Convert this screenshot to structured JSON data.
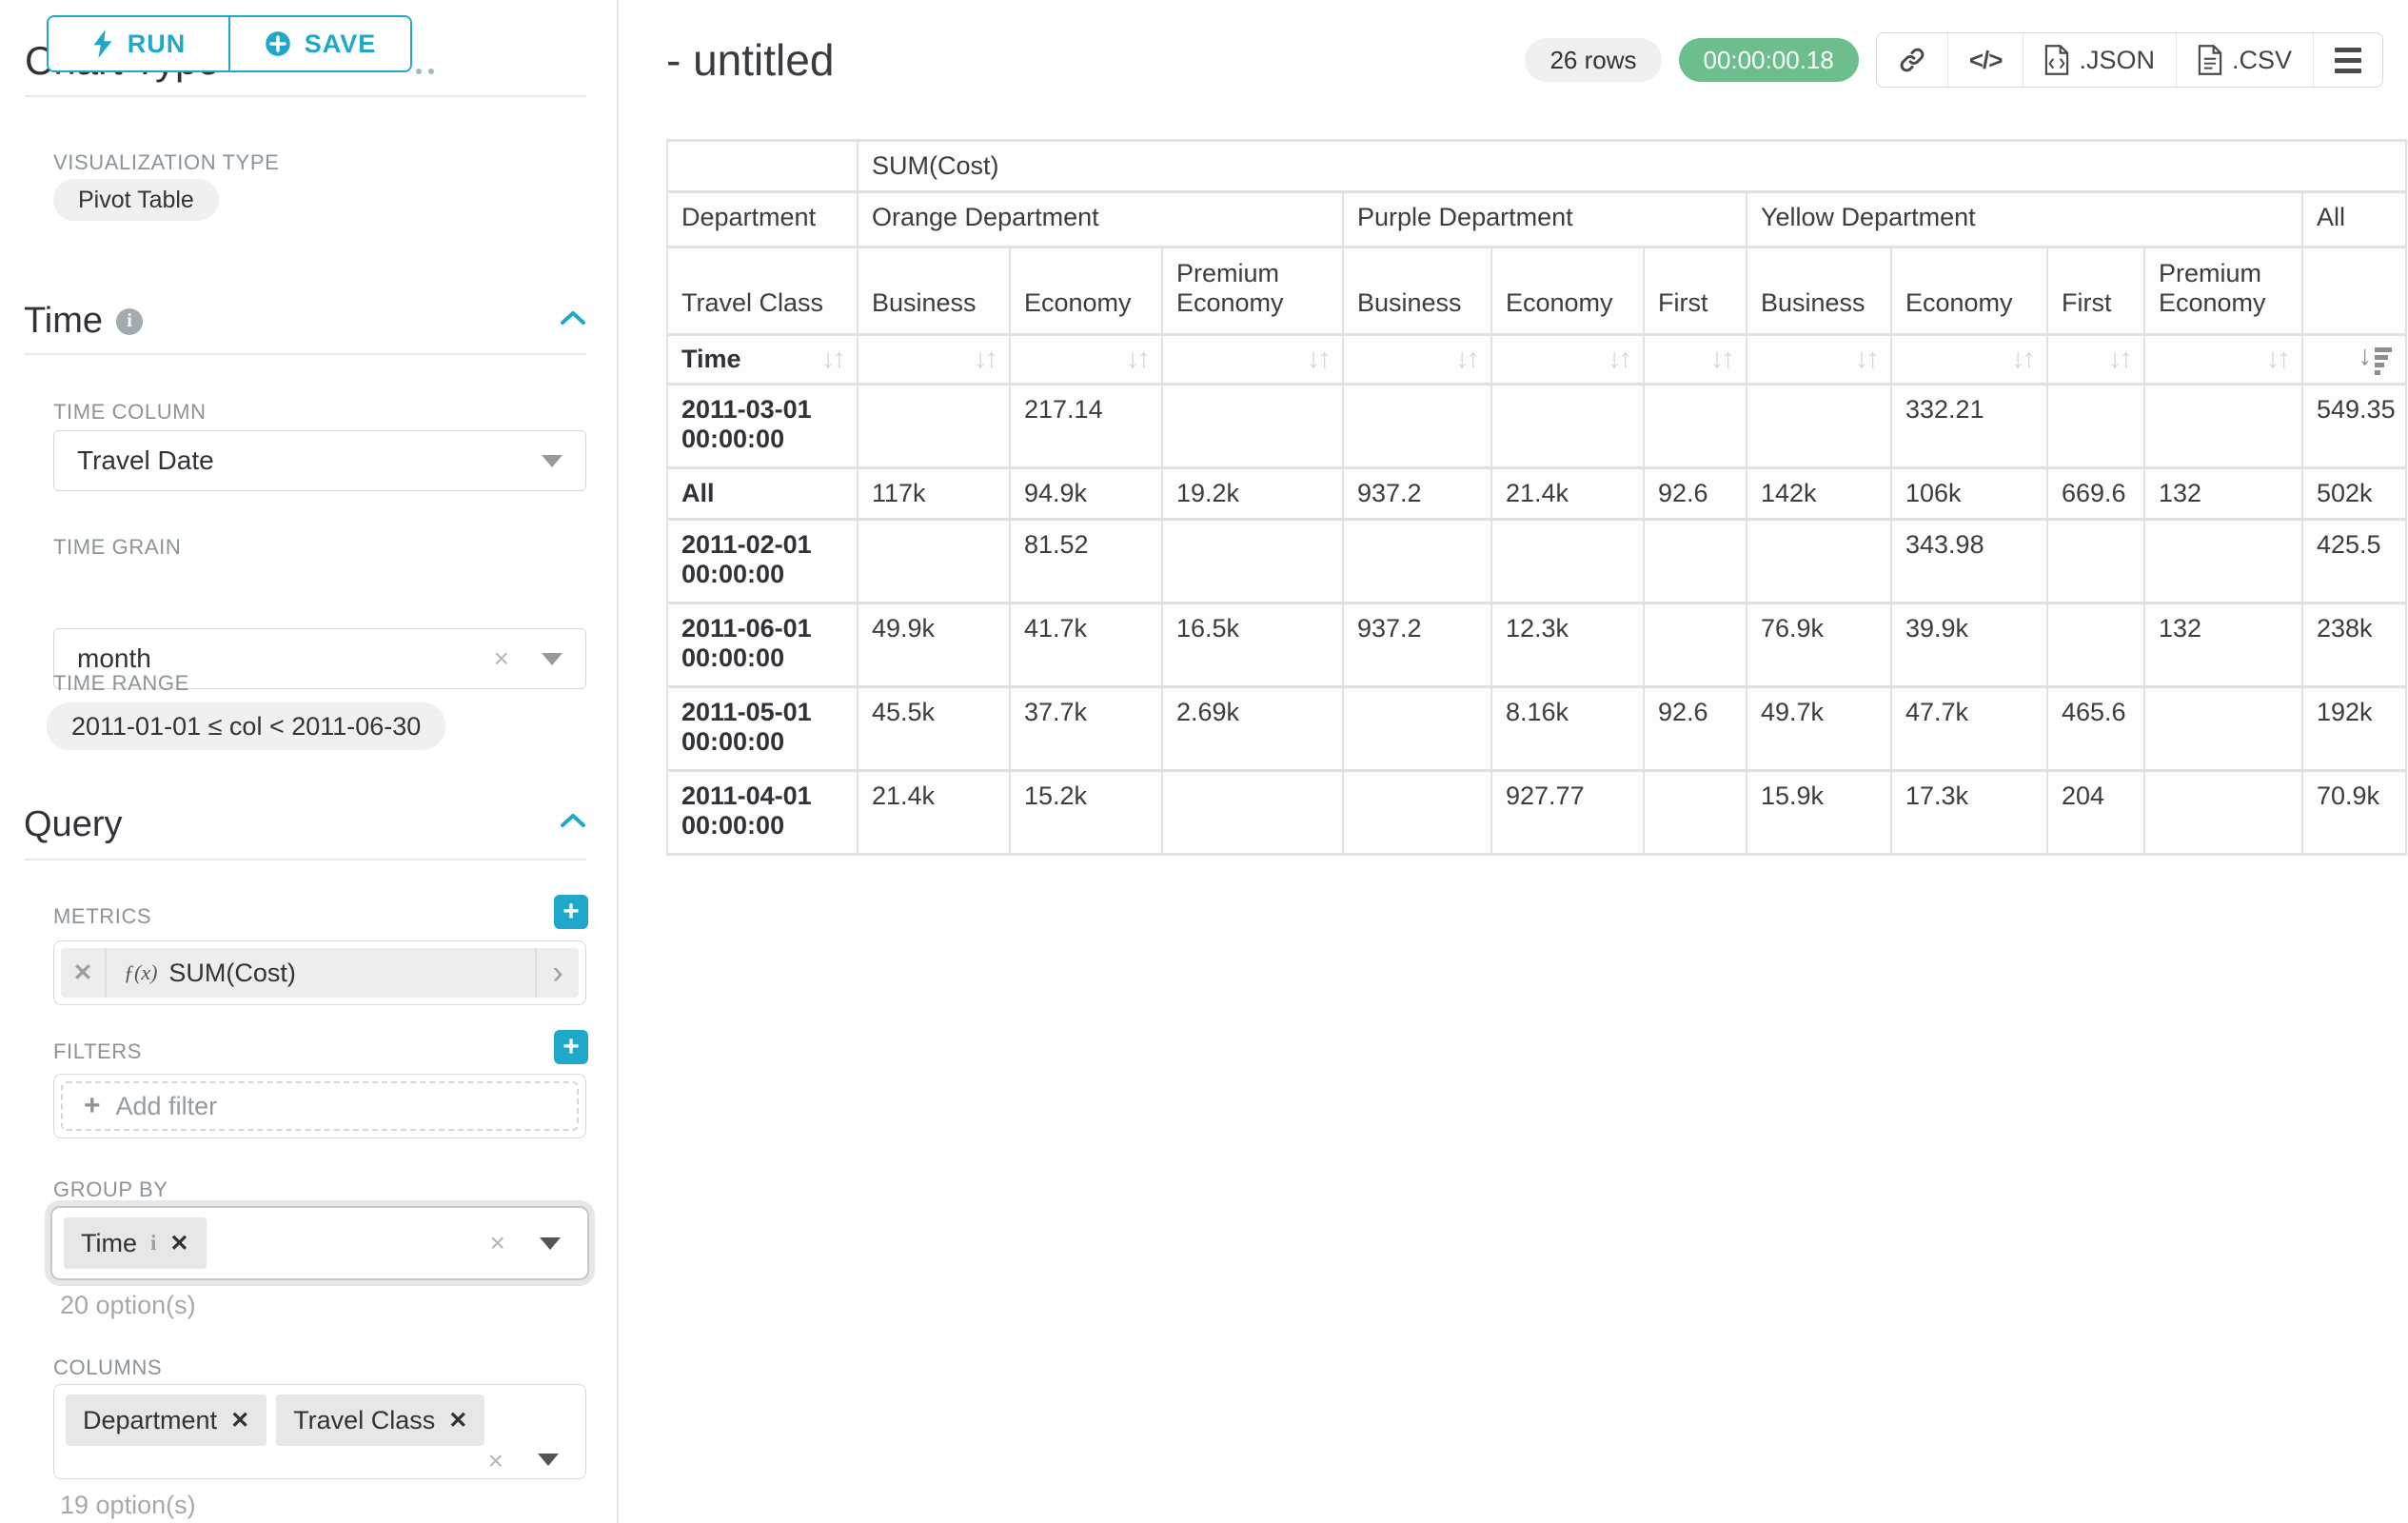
{
  "sidebar": {
    "run_label": "RUN",
    "save_label": "SAVE",
    "chart_type_heading": "Chart Type",
    "viz_type_label": "VISUALIZATION TYPE",
    "viz_type_value": "Pivot Table",
    "time": {
      "title": "Time",
      "time_column_label": "TIME COLUMN",
      "time_column_value": "Travel Date",
      "time_grain_label": "TIME GRAIN",
      "time_grain_value": "month",
      "time_range_label": "TIME RANGE",
      "time_range_value": "2011-01-01 ≤ col < 2011-06-30"
    },
    "query": {
      "title": "Query",
      "metrics_label": "METRICS",
      "metric_fn_icon": "ƒ(x)",
      "metric_value": "SUM(Cost)",
      "filters_label": "FILTERS",
      "add_filter_label": "Add filter",
      "group_by_label": "GROUP BY",
      "group_by_chips": [
        {
          "label": "Time",
          "info": true
        }
      ],
      "group_by_options": "20 option(s)",
      "columns_label": "COLUMNS",
      "columns_chips": [
        {
          "label": "Department",
          "info": false
        },
        {
          "label": "Travel Class",
          "info": false
        }
      ],
      "columns_options": "19 option(s)"
    }
  },
  "header": {
    "title": "- untitled",
    "rows_badge": "26 rows",
    "timer_badge": "00:00:00.18",
    "json_label": ".JSON",
    "csv_label": ".CSV"
  },
  "chart_data": {
    "type": "table",
    "metric_header": "SUM(Cost)",
    "row_dim_label": "Department",
    "col_dim_label": "Travel Class",
    "sort_row_label": "Time",
    "column_groups": [
      {
        "label": "Orange Department",
        "span": 3
      },
      {
        "label": "Purple Department",
        "span": 3
      },
      {
        "label": "Yellow Department",
        "span": 4
      },
      {
        "label": "All",
        "span": 1
      }
    ],
    "sub_columns": [
      "Business",
      "Economy",
      "Premium Economy",
      "Business",
      "Economy",
      "First",
      "Business",
      "Economy",
      "First",
      "Premium Economy",
      ""
    ],
    "rows": [
      {
        "label": "2011-03-01 00:00:00",
        "tall": true,
        "cells": [
          "",
          "217.14",
          "",
          "",
          "",
          "",
          "",
          "332.21",
          "",
          "",
          "549.35"
        ]
      },
      {
        "label": "All",
        "tall": false,
        "cells": [
          "117k",
          "94.9k",
          "19.2k",
          "937.2",
          "21.4k",
          "92.6",
          "142k",
          "106k",
          "669.6",
          "132",
          "502k"
        ]
      },
      {
        "label": "2011-02-01 00:00:00",
        "tall": true,
        "cells": [
          "",
          "81.52",
          "",
          "",
          "",
          "",
          "",
          "343.98",
          "",
          "",
          "425.5"
        ]
      },
      {
        "label": "2011-06-01 00:00:00",
        "tall": true,
        "cells": [
          "49.9k",
          "41.7k",
          "16.5k",
          "937.2",
          "12.3k",
          "",
          "76.9k",
          "39.9k",
          "",
          "132",
          "238k"
        ]
      },
      {
        "label": "2011-05-01 00:00:00",
        "tall": true,
        "cells": [
          "45.5k",
          "37.7k",
          "2.69k",
          "",
          "8.16k",
          "92.6",
          "49.7k",
          "47.7k",
          "465.6",
          "",
          "192k"
        ]
      },
      {
        "label": "2011-04-01 00:00:00",
        "tall": true,
        "cells": [
          "21.4k",
          "15.2k",
          "",
          "",
          "927.77",
          "",
          "15.9k",
          "17.3k",
          "204",
          "",
          "70.9k"
        ]
      }
    ]
  },
  "colors": {
    "accent": "#1FA8C9",
    "timer_green": "#6CBE8D"
  }
}
